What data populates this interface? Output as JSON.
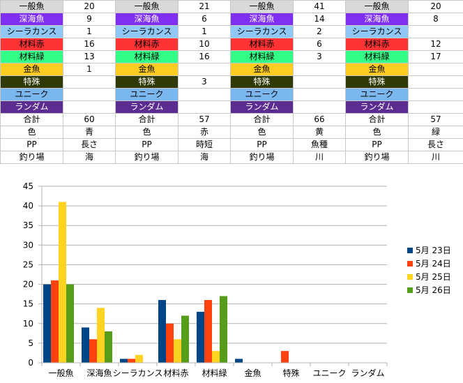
{
  "colors": {
    "一般魚": "#d9d9d9",
    "深海魚": "#7f2ff2",
    "シーラカンス": "#8fc8f7",
    "材料赤": "#ff3333",
    "材料緑": "#33ff88",
    "金魚": "#ffcc22",
    "特殊": "#2f3a06",
    "ユニーク": "#7ab7ee",
    "ランダム": "#5b2d91",
    "plain": "#ffffff"
  },
  "label_text_colors": {
    "一般魚": "#000000",
    "深海魚": "#ffffff",
    "シーラカンス": "#000000",
    "材料赤": "#000000",
    "材料緑": "#000000",
    "金魚": "#000000",
    "特殊": "#ffffff",
    "ユニーク": "#000000",
    "ランダム": "#ffffff",
    "plain": "#000000"
  },
  "table": {
    "rows": [
      {
        "key": "一般魚",
        "cells": [
          "一般魚",
          "20",
          "一般魚",
          "21",
          "一般魚",
          "41",
          "一般魚",
          "20"
        ]
      },
      {
        "key": "深海魚",
        "cells": [
          "深海魚",
          "9",
          "深海魚",
          "6",
          "深海魚",
          "14",
          "深海魚",
          "8"
        ]
      },
      {
        "key": "シーラカンス",
        "cells": [
          "シーラカンス",
          "1",
          "シーラカンス",
          "1",
          "シーラカンス",
          "2",
          "シーラカンス",
          ""
        ]
      },
      {
        "key": "材料赤",
        "cells": [
          "材料赤",
          "16",
          "材料赤",
          "10",
          "材料赤",
          "6",
          "材料赤",
          "12"
        ]
      },
      {
        "key": "材料緑",
        "cells": [
          "材料緑",
          "13",
          "材料緑",
          "16",
          "材料緑",
          "3",
          "材料緑",
          "17"
        ]
      },
      {
        "key": "金魚",
        "cells": [
          "金魚",
          "1",
          "金魚",
          "",
          "金魚",
          "",
          "金魚",
          ""
        ]
      },
      {
        "key": "特殊",
        "cells": [
          "特殊",
          "",
          "特殊",
          "3",
          "特殊",
          "",
          "特殊",
          ""
        ]
      },
      {
        "key": "ユニーク",
        "cells": [
          "ユニーク",
          "",
          "ユニーク",
          "",
          "ユニーク",
          "",
          "ユニーク",
          ""
        ]
      },
      {
        "key": "ランダム",
        "cells": [
          "ランダム",
          "",
          "ランダム",
          "",
          "ランダム",
          "",
          "ランダム",
          ""
        ]
      },
      {
        "key": "plain",
        "cells": [
          "合計",
          "60",
          "合計",
          "57",
          "合計",
          "66",
          "合計",
          "57"
        ]
      },
      {
        "key": "plain",
        "cells": [
          "色",
          "青",
          "色",
          "赤",
          "色",
          "黄",
          "色",
          "緑"
        ]
      },
      {
        "key": "plain",
        "cells": [
          "PP",
          "長さ",
          "PP",
          "時短",
          "PP",
          "魚種",
          "PP",
          "長さ"
        ]
      },
      {
        "key": "plain",
        "cells": [
          "釣り場",
          "海",
          "釣り場",
          "海",
          "釣り場",
          "川",
          "釣り場",
          "川"
        ]
      }
    ]
  },
  "chart_data": {
    "type": "bar",
    "categories": [
      "一般魚",
      "深海魚",
      "シーラカンス",
      "材料赤",
      "材料緑",
      "金魚",
      "特殊",
      "ユニーク",
      "ランダム"
    ],
    "series": [
      {
        "name": "5月 23日",
        "color": "#004586",
        "values": [
          20,
          9,
          1,
          16,
          13,
          1,
          0,
          0,
          0
        ]
      },
      {
        "name": "5月 24日",
        "color": "#ff420e",
        "values": [
          21,
          6,
          1,
          10,
          16,
          0,
          3,
          0,
          0
        ]
      },
      {
        "name": "5月 25日",
        "color": "#ffd320",
        "values": [
          41,
          14,
          2,
          6,
          3,
          0,
          0,
          0,
          0
        ]
      },
      {
        "name": "5月 26日",
        "color": "#579d1c",
        "values": [
          20,
          8,
          0,
          12,
          17,
          0,
          0,
          0,
          0
        ]
      }
    ],
    "ylim": [
      0,
      45
    ],
    "yticks": [
      0,
      5,
      10,
      15,
      20,
      25,
      30,
      35,
      40,
      45
    ],
    "grid": true,
    "legend": "right"
  }
}
